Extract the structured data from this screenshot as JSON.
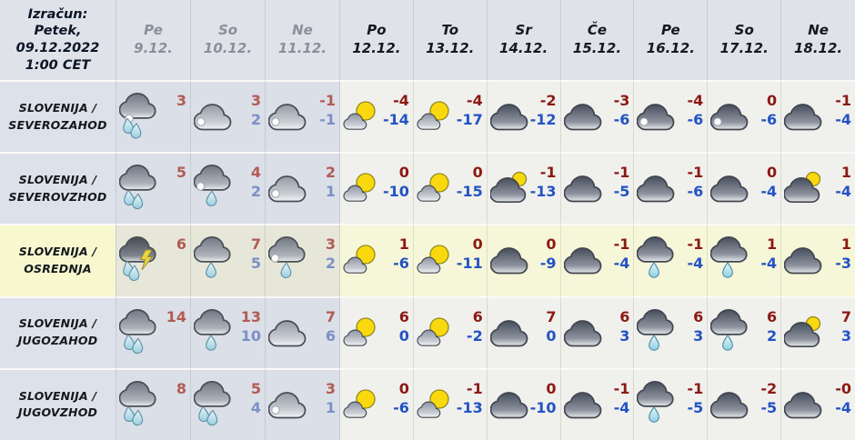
{
  "header": {
    "calc_label": "Izračun:\nPetek,\n09.12.2022\n1:00 CET",
    "days": [
      {
        "abbr": "Pe",
        "date": "9.12.",
        "past": true
      },
      {
        "abbr": "So",
        "date": "10.12.",
        "past": true
      },
      {
        "abbr": "Ne",
        "date": "11.12.",
        "past": true
      },
      {
        "abbr": "Po",
        "date": "12.12.",
        "past": false
      },
      {
        "abbr": "To",
        "date": "13.12.",
        "past": false
      },
      {
        "abbr": "Sr",
        "date": "14.12.",
        "past": false
      },
      {
        "abbr": "Če",
        "date": "15.12.",
        "past": false
      },
      {
        "abbr": "Pe",
        "date": "16.12.",
        "past": false
      },
      {
        "abbr": "So",
        "date": "17.12.",
        "past": false
      },
      {
        "abbr": "Ne",
        "date": "18.12.",
        "past": false
      }
    ]
  },
  "regions": [
    {
      "label": "SLOVENIJA /\nSEVEROZAHOD",
      "highlight": false,
      "cells": [
        {
          "icon": "rain2-snow",
          "hi": "3",
          "lo": ""
        },
        {
          "icon": "cloud-snow",
          "hi": "3",
          "lo": "2"
        },
        {
          "icon": "cloud-snow",
          "hi": "-1",
          "lo": "-1"
        },
        {
          "icon": "sun-cloud",
          "hi": "-4",
          "lo": "-14"
        },
        {
          "icon": "sun-cloud",
          "hi": "-4",
          "lo": "-17"
        },
        {
          "icon": "cloud",
          "hi": "-2",
          "lo": "-12"
        },
        {
          "icon": "cloud",
          "hi": "-3",
          "lo": "-6"
        },
        {
          "icon": "cloud-snow",
          "hi": "-4",
          "lo": "-6"
        },
        {
          "icon": "cloud-snow",
          "hi": "0",
          "lo": "-6"
        },
        {
          "icon": "cloud",
          "hi": "-1",
          "lo": "-4"
        }
      ]
    },
    {
      "label": "SLOVENIJA /\nSEVEROVZHOD",
      "highlight": false,
      "cells": [
        {
          "icon": "rain2",
          "hi": "5",
          "lo": ""
        },
        {
          "icon": "rain1-snow",
          "hi": "4",
          "lo": "2"
        },
        {
          "icon": "cloud-snow",
          "hi": "2",
          "lo": "1"
        },
        {
          "icon": "sun-cloud",
          "hi": "0",
          "lo": "-10"
        },
        {
          "icon": "sun-cloud",
          "hi": "0",
          "lo": "-15"
        },
        {
          "icon": "cloud-sun",
          "hi": "-1",
          "lo": "-13"
        },
        {
          "icon": "cloud",
          "hi": "-1",
          "lo": "-5"
        },
        {
          "icon": "cloud",
          "hi": "-1",
          "lo": "-6"
        },
        {
          "icon": "cloud",
          "hi": "0",
          "lo": "-4"
        },
        {
          "icon": "cloud-sun",
          "hi": "1",
          "lo": "-4"
        }
      ]
    },
    {
      "label": "SLOVENIJA /\nOSREDNJA",
      "highlight": true,
      "cells": [
        {
          "icon": "storm",
          "hi": "6",
          "lo": ""
        },
        {
          "icon": "rain1",
          "hi": "7",
          "lo": "5"
        },
        {
          "icon": "rain1-snow",
          "hi": "3",
          "lo": "2"
        },
        {
          "icon": "sun-cloud",
          "hi": "1",
          "lo": "-6"
        },
        {
          "icon": "sun-cloud",
          "hi": "0",
          "lo": "-11"
        },
        {
          "icon": "cloud",
          "hi": "0",
          "lo": "-9"
        },
        {
          "icon": "cloud",
          "hi": "-1",
          "lo": "-4"
        },
        {
          "icon": "rain1",
          "hi": "-1",
          "lo": "-4"
        },
        {
          "icon": "rain1",
          "hi": "1",
          "lo": "-4"
        },
        {
          "icon": "cloud",
          "hi": "1",
          "lo": "-3"
        }
      ]
    },
    {
      "label": "SLOVENIJA /\nJUGOZAHOD",
      "highlight": false,
      "cells": [
        {
          "icon": "rain2",
          "hi": "14",
          "lo": ""
        },
        {
          "icon": "rain1",
          "hi": "13",
          "lo": "10"
        },
        {
          "icon": "cloud",
          "hi": "7",
          "lo": "6"
        },
        {
          "icon": "sun-cloud",
          "hi": "6",
          "lo": "0"
        },
        {
          "icon": "sun-cloud",
          "hi": "6",
          "lo": "-2"
        },
        {
          "icon": "cloud",
          "hi": "7",
          "lo": "0"
        },
        {
          "icon": "cloud",
          "hi": "6",
          "lo": "3"
        },
        {
          "icon": "rain1",
          "hi": "6",
          "lo": "3"
        },
        {
          "icon": "rain1",
          "hi": "6",
          "lo": "2"
        },
        {
          "icon": "cloud-sun",
          "hi": "7",
          "lo": "3"
        }
      ]
    },
    {
      "label": "SLOVENIJA /\nJUGOVZHOD",
      "highlight": false,
      "cells": [
        {
          "icon": "rain2",
          "hi": "8",
          "lo": ""
        },
        {
          "icon": "rain2",
          "hi": "5",
          "lo": "4"
        },
        {
          "icon": "cloud-snow",
          "hi": "3",
          "lo": "1"
        },
        {
          "icon": "sun-cloud",
          "hi": "0",
          "lo": "-6"
        },
        {
          "icon": "sun-cloud",
          "hi": "-1",
          "lo": "-13"
        },
        {
          "icon": "cloud",
          "hi": "0",
          "lo": "-10"
        },
        {
          "icon": "cloud",
          "hi": "-1",
          "lo": "-4"
        },
        {
          "icon": "rain1",
          "hi": "-1",
          "lo": "-5"
        },
        {
          "icon": "cloud",
          "hi": "-2",
          "lo": "-5"
        },
        {
          "icon": "cloud",
          "hi": "-0",
          "lo": "-4"
        }
      ]
    }
  ],
  "colors": {
    "temp_max": "#8c1a12",
    "temp_min": "#2353c4",
    "temp_max_past": "#b25b54",
    "temp_min_past": "#7b90c8",
    "past_columns_bg": "#dbdfe7",
    "future_columns_bg": "#f0f0ed",
    "highlight_row_bg": "#f6f6d8",
    "highlight_label_bg": "#f8f8cf",
    "header_bg": "#dfe3e9"
  }
}
